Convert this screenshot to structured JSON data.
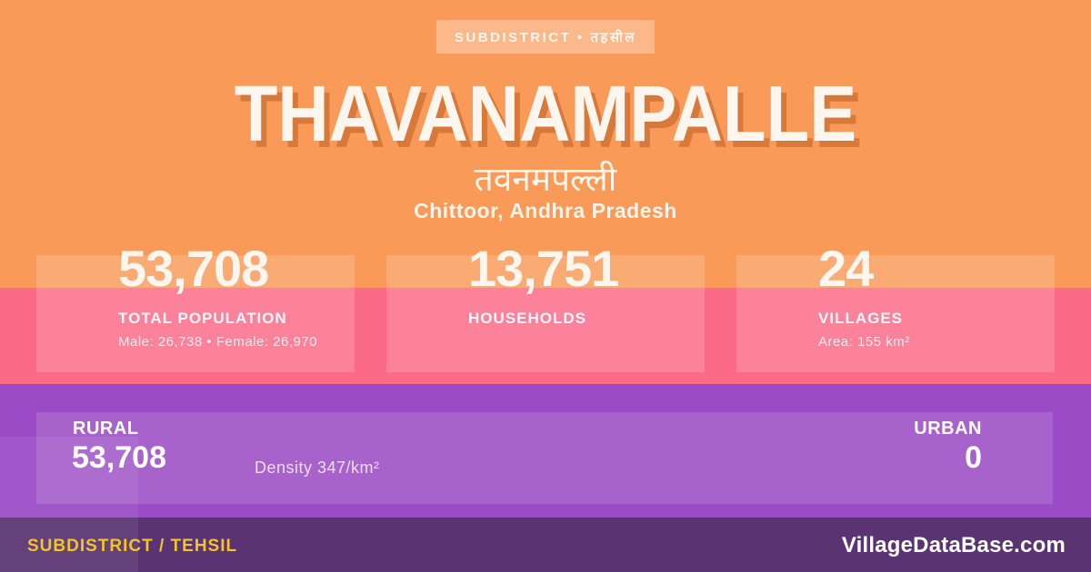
{
  "badge": {
    "label": "SUBDISTRICT • तहसील"
  },
  "header": {
    "title": "THAVANAMPALLE",
    "native_name": "तवनमपल्ली",
    "location": "Chittoor, Andhra Pradesh"
  },
  "stats": [
    {
      "value": "53,708",
      "label": "TOTAL POPULATION",
      "detail": "Male: 26,738 • Female: 26,970"
    },
    {
      "value": "13,751",
      "label": "HOUSEHOLDS",
      "detail": ""
    },
    {
      "value": "24",
      "label": "VILLAGES",
      "detail": "Area: 155 km²"
    }
  ],
  "rural_urban": {
    "rural_label": "RURAL",
    "rural_value": "53,708",
    "density": "Density 347/km²",
    "urban_label": "URBAN",
    "urban_value": "0"
  },
  "footer": {
    "type_label": "SUBDISTRICT / TEHSIL",
    "site": "VillageDataBase.com"
  },
  "colors": {
    "orange": "#FA9A59",
    "pink": "#FB6A87",
    "purple": "#9A4BC5",
    "footer_purple": "#5A3372",
    "accent_yellow": "#F2C428",
    "text_warm_white": "#FDF6EE"
  }
}
